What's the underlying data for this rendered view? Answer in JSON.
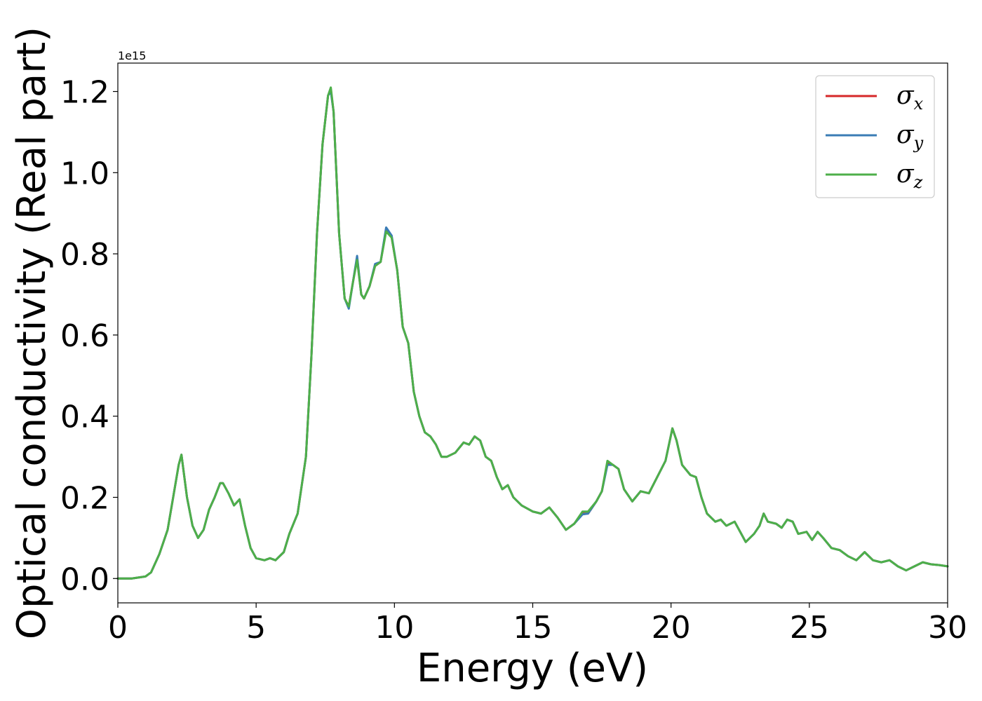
{
  "chart_data": {
    "type": "line",
    "title": "",
    "xlabel": "Energy (eV)",
    "ylabel": "Optical conductivity (Real part)",
    "y_offset_text": "1e15",
    "xlim": [
      0,
      30
    ],
    "ylim": [
      -0.06,
      1.27
    ],
    "y_scale_factor": 1000000000000000.0,
    "grid": false,
    "legend_position": "top-right",
    "x_ticks": [
      0,
      5,
      10,
      15,
      20,
      25,
      30
    ],
    "x_tick_labels": [
      "0",
      "5",
      "10",
      "15",
      "20",
      "25",
      "30"
    ],
    "y_ticks": [
      0.0,
      0.2,
      0.4,
      0.6,
      0.8,
      1.0,
      1.2
    ],
    "y_tick_labels": [
      "0.0",
      "0.2",
      "0.4",
      "0.6",
      "0.8",
      "1.0",
      "1.2"
    ],
    "x": [
      0,
      0.5,
      1.0,
      1.2,
      1.5,
      1.8,
      2.0,
      2.2,
      2.3,
      2.5,
      2.7,
      2.9,
      3.1,
      3.3,
      3.5,
      3.7,
      3.8,
      4.0,
      4.2,
      4.4,
      4.6,
      4.8,
      5.0,
      5.3,
      5.5,
      5.7,
      6.0,
      6.2,
      6.5,
      6.8,
      7.0,
      7.2,
      7.4,
      7.6,
      7.7,
      7.8,
      8.0,
      8.2,
      8.35,
      8.5,
      8.65,
      8.8,
      8.9,
      9.1,
      9.3,
      9.5,
      9.7,
      9.9,
      10.1,
      10.3,
      10.5,
      10.7,
      10.9,
      11.1,
      11.3,
      11.5,
      11.7,
      11.9,
      12.2,
      12.5,
      12.7,
      12.9,
      13.1,
      13.3,
      13.5,
      13.7,
      13.9,
      14.1,
      14.3,
      14.6,
      15.0,
      15.3,
      15.6,
      15.9,
      16.2,
      16.5,
      16.8,
      17.0,
      17.3,
      17.5,
      17.7,
      17.9,
      18.1,
      18.3,
      18.6,
      18.9,
      19.2,
      19.5,
      19.8,
      20.05,
      20.2,
      20.4,
      20.7,
      20.9,
      21.1,
      21.3,
      21.6,
      21.8,
      22.0,
      22.3,
      22.7,
      23.0,
      23.2,
      23.35,
      23.5,
      23.8,
      24.0,
      24.2,
      24.4,
      24.6,
      24.9,
      25.1,
      25.3,
      25.5,
      25.8,
      26.1,
      26.4,
      26.7,
      27.0,
      27.3,
      27.6,
      27.9,
      28.2,
      28.5,
      28.8,
      29.1,
      29.4,
      29.7,
      30.0
    ],
    "series": [
      {
        "name": "σx",
        "color": "#d62728",
        "values": [
          0.0,
          0.0,
          0.005,
          0.015,
          0.06,
          0.12,
          0.2,
          0.28,
          0.305,
          0.2,
          0.13,
          0.1,
          0.12,
          0.17,
          0.2,
          0.235,
          0.235,
          0.21,
          0.18,
          0.195,
          0.13,
          0.075,
          0.05,
          0.045,
          0.05,
          0.045,
          0.065,
          0.11,
          0.16,
          0.3,
          0.55,
          0.85,
          1.07,
          1.19,
          1.205,
          1.15,
          0.85,
          0.69,
          0.67,
          0.73,
          0.79,
          0.7,
          0.69,
          0.72,
          0.77,
          0.78,
          0.86,
          0.84,
          0.76,
          0.62,
          0.58,
          0.46,
          0.4,
          0.36,
          0.35,
          0.33,
          0.3,
          0.3,
          0.31,
          0.335,
          0.33,
          0.35,
          0.34,
          0.3,
          0.29,
          0.25,
          0.22,
          0.23,
          0.2,
          0.18,
          0.165,
          0.16,
          0.175,
          0.15,
          0.12,
          0.135,
          0.16,
          0.16,
          0.19,
          0.215,
          0.285,
          0.28,
          0.27,
          0.22,
          0.19,
          0.215,
          0.21,
          0.25,
          0.29,
          0.37,
          0.34,
          0.28,
          0.255,
          0.25,
          0.2,
          0.16,
          0.14,
          0.145,
          0.13,
          0.14,
          0.09,
          0.11,
          0.13,
          0.16,
          0.14,
          0.135,
          0.125,
          0.145,
          0.14,
          0.11,
          0.115,
          0.095,
          0.115,
          0.1,
          0.075,
          0.07,
          0.055,
          0.045,
          0.065,
          0.045,
          0.04,
          0.045,
          0.03,
          0.02,
          0.03,
          0.04,
          0.035,
          0.033,
          0.03
        ]
      },
      {
        "name": "σy",
        "color": "#3a7cb5",
        "values": [
          0.0,
          0.0,
          0.005,
          0.015,
          0.06,
          0.12,
          0.2,
          0.28,
          0.305,
          0.2,
          0.13,
          0.1,
          0.12,
          0.17,
          0.2,
          0.235,
          0.235,
          0.21,
          0.18,
          0.195,
          0.13,
          0.075,
          0.05,
          0.045,
          0.05,
          0.045,
          0.065,
          0.11,
          0.16,
          0.3,
          0.55,
          0.85,
          1.07,
          1.19,
          1.2,
          1.15,
          0.85,
          0.69,
          0.665,
          0.73,
          0.795,
          0.7,
          0.69,
          0.72,
          0.775,
          0.78,
          0.865,
          0.845,
          0.76,
          0.62,
          0.58,
          0.46,
          0.4,
          0.36,
          0.35,
          0.33,
          0.3,
          0.3,
          0.31,
          0.335,
          0.33,
          0.35,
          0.34,
          0.3,
          0.29,
          0.25,
          0.22,
          0.23,
          0.2,
          0.18,
          0.165,
          0.16,
          0.175,
          0.15,
          0.12,
          0.135,
          0.158,
          0.16,
          0.19,
          0.215,
          0.28,
          0.28,
          0.27,
          0.22,
          0.19,
          0.215,
          0.21,
          0.25,
          0.29,
          0.37,
          0.34,
          0.28,
          0.255,
          0.25,
          0.2,
          0.16,
          0.14,
          0.145,
          0.13,
          0.14,
          0.09,
          0.11,
          0.13,
          0.16,
          0.14,
          0.135,
          0.125,
          0.145,
          0.14,
          0.11,
          0.115,
          0.095,
          0.115,
          0.1,
          0.075,
          0.07,
          0.055,
          0.045,
          0.065,
          0.045,
          0.04,
          0.045,
          0.03,
          0.02,
          0.03,
          0.04,
          0.035,
          0.033,
          0.03
        ]
      },
      {
        "name": "σz",
        "color": "#4daf4a",
        "values": [
          0.0,
          0.0,
          0.005,
          0.015,
          0.06,
          0.12,
          0.2,
          0.28,
          0.305,
          0.2,
          0.13,
          0.1,
          0.12,
          0.17,
          0.2,
          0.235,
          0.235,
          0.21,
          0.18,
          0.195,
          0.13,
          0.075,
          0.05,
          0.045,
          0.05,
          0.045,
          0.065,
          0.11,
          0.16,
          0.3,
          0.55,
          0.85,
          1.07,
          1.19,
          1.21,
          1.15,
          0.85,
          0.69,
          0.67,
          0.73,
          0.785,
          0.7,
          0.69,
          0.72,
          0.77,
          0.78,
          0.855,
          0.84,
          0.76,
          0.62,
          0.58,
          0.46,
          0.4,
          0.36,
          0.35,
          0.33,
          0.3,
          0.3,
          0.31,
          0.335,
          0.33,
          0.35,
          0.34,
          0.3,
          0.29,
          0.25,
          0.22,
          0.23,
          0.2,
          0.18,
          0.165,
          0.16,
          0.175,
          0.15,
          0.12,
          0.135,
          0.165,
          0.165,
          0.19,
          0.215,
          0.29,
          0.28,
          0.27,
          0.22,
          0.19,
          0.215,
          0.21,
          0.25,
          0.29,
          0.37,
          0.34,
          0.28,
          0.255,
          0.25,
          0.2,
          0.16,
          0.14,
          0.145,
          0.13,
          0.14,
          0.09,
          0.11,
          0.13,
          0.16,
          0.14,
          0.135,
          0.125,
          0.145,
          0.14,
          0.11,
          0.115,
          0.095,
          0.115,
          0.1,
          0.075,
          0.07,
          0.055,
          0.045,
          0.065,
          0.045,
          0.04,
          0.045,
          0.03,
          0.02,
          0.03,
          0.04,
          0.035,
          0.033,
          0.03
        ]
      }
    ],
    "legend": [
      {
        "symbol": "σ",
        "sub": "x",
        "color": "#d62728"
      },
      {
        "symbol": "σ",
        "sub": "y",
        "color": "#3a7cb5"
      },
      {
        "symbol": "σ",
        "sub": "z",
        "color": "#4daf4a"
      }
    ]
  }
}
